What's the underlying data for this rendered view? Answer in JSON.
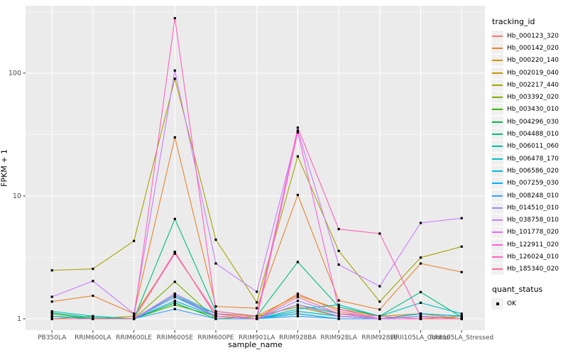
{
  "chart_data": {
    "type": "line",
    "title": "",
    "xlabel": "sample_name",
    "ylabel": "FPKM + 1",
    "y_scale": "log10",
    "y_ticks": [
      1,
      10,
      100
    ],
    "y_minor_ticks": [
      3.162,
      31.623,
      316.228
    ],
    "ylim": [
      0.81,
      354
    ],
    "grid": "on",
    "panel_bg": "#EBEBEB",
    "grid_color": "#FFFFFF",
    "tick_label_color": "#4D4D4D",
    "point_marker": "small black square",
    "legend_position": "right",
    "categories": [
      "PB350LA",
      "RRIM600LA",
      "RRIM600LE",
      "RRIM600SE",
      "RRIM600PE",
      "RRIM901LA",
      "RRIM928BA",
      "RRIM928LA",
      "RRIM928LE",
      "RRII105LA_Control",
      "RRII105LA_Stressed"
    ],
    "series": [
      {
        "name": "Hb_000123_320",
        "color": "#F8766D",
        "values": [
          1.0,
          1.0,
          1.0,
          1.55,
          1.05,
          1.0,
          1.6,
          1.15,
          1.0,
          1.05,
          1.0
        ]
      },
      {
        "name": "Hb_000142_020",
        "color": "#EA8331",
        "values": [
          1.38,
          1.54,
          1.1,
          30,
          1.26,
          1.22,
          10.2,
          1.41,
          1.19,
          2.82,
          2.4
        ]
      },
      {
        "name": "Hb_000220_140",
        "color": "#D89000",
        "values": [
          1.0,
          1.0,
          1.05,
          3.4,
          1.1,
          1.05,
          1.55,
          1.2,
          1.05,
          1.1,
          1.0
        ]
      },
      {
        "name": "Hb_002019_040",
        "color": "#C09B00",
        "values": [
          1.05,
          1.0,
          1.0,
          3.5,
          1.05,
          1.0,
          1.3,
          1.1,
          1.0,
          1.0,
          1.05
        ]
      },
      {
        "name": "Hb_002217_440",
        "color": "#A3A500",
        "values": [
          2.48,
          2.55,
          4.3,
          90,
          4.4,
          1.36,
          21,
          3.57,
          1.38,
          3.15,
          3.87
        ]
      },
      {
        "name": "Hb_003392_020",
        "color": "#7CAE00",
        "values": [
          1.0,
          1.05,
          1.0,
          2.0,
          1.0,
          1.05,
          1.25,
          1.05,
          1.0,
          1.05,
          1.0
        ]
      },
      {
        "name": "Hb_003430_010",
        "color": "#39B600",
        "values": [
          1.1,
          1.0,
          1.0,
          1.3,
          1.05,
          1.0,
          1.1,
          1.0,
          1.0,
          1.0,
          1.0
        ]
      },
      {
        "name": "Hb_004296_030",
        "color": "#00BB4E",
        "values": [
          1.0,
          1.0,
          1.0,
          1.35,
          1.0,
          1.0,
          1.15,
          1.05,
          1.0,
          1.0,
          1.0
        ]
      },
      {
        "name": "Hb_004488_010",
        "color": "#00BF7D",
        "values": [
          1.05,
          1.0,
          1.0,
          6.5,
          1.15,
          1.05,
          2.9,
          1.25,
          1.05,
          1.65,
          1.03
        ]
      },
      {
        "name": "Hb_006011_060",
        "color": "#00C1A3",
        "values": [
          1.12,
          1.02,
          1.0,
          1.6,
          1.1,
          1.0,
          1.3,
          1.1,
          1.0,
          1.1,
          1.05
        ]
      },
      {
        "name": "Hb_006478_170",
        "color": "#00BFC4",
        "values": [
          1.15,
          1.05,
          1.0,
          1.55,
          1.05,
          1.0,
          1.2,
          1.3,
          1.05,
          1.35,
          1.1
        ]
      },
      {
        "name": "Hb_006586_020",
        "color": "#00BAE0",
        "values": [
          1.0,
          1.0,
          1.0,
          1.5,
          1.1,
          1.0,
          1.15,
          1.05,
          1.0,
          1.05,
          1.0
        ]
      },
      {
        "name": "Hb_007259_030",
        "color": "#00B0F6",
        "values": [
          1.05,
          1.0,
          1.0,
          1.4,
          1.05,
          1.0,
          1.1,
          1.0,
          1.0,
          1.1,
          1.05
        ]
      },
      {
        "name": "Hb_008248_010",
        "color": "#35A2FF",
        "values": [
          1.0,
          1.0,
          1.0,
          1.2,
          1.0,
          1.0,
          1.05,
          1.0,
          1.0,
          1.0,
          1.0
        ]
      },
      {
        "name": "Hb_014510_010",
        "color": "#9590FF",
        "values": [
          1.0,
          1.0,
          1.0,
          1.5,
          1.05,
          1.0,
          1.4,
          1.1,
          1.0,
          1.05,
          1.0
        ]
      },
      {
        "name": "Hb_038758_010",
        "color": "#C77CFF",
        "values": [
          1.51,
          2.03,
          1.1,
          105,
          2.82,
          1.66,
          34,
          2.76,
          1.84,
          6.03,
          6.59
        ]
      },
      {
        "name": "Hb_101778_020",
        "color": "#E76BF3",
        "values": [
          1.0,
          1.0,
          1.0,
          1.6,
          1.05,
          1.0,
          1.3,
          1.05,
          1.0,
          1.0,
          1.0
        ]
      },
      {
        "name": "Hb_122911_020",
        "color": "#FA62DB",
        "values": [
          1.0,
          1.0,
          1.0,
          3.4,
          1.1,
          1.0,
          33,
          1.2,
          1.0,
          1.0,
          1.0
        ]
      },
      {
        "name": "Hb_126024_010",
        "color": "#FF62BC",
        "values": [
          1.0,
          1.0,
          1.0,
          280,
          1.15,
          1.05,
          36,
          5.37,
          4.94,
          1.04,
          1.0
        ]
      },
      {
        "name": "Hb_185340_020",
        "color": "#FF6A98",
        "values": [
          1.0,
          1.0,
          1.0,
          3.5,
          1.05,
          1.0,
          1.5,
          1.1,
          1.05,
          1.0,
          1.0
        ]
      }
    ],
    "legends": {
      "color": {
        "title": "tracking_id"
      },
      "shape": {
        "title": "quant_status",
        "items": [
          {
            "label": "OK"
          }
        ]
      }
    }
  }
}
